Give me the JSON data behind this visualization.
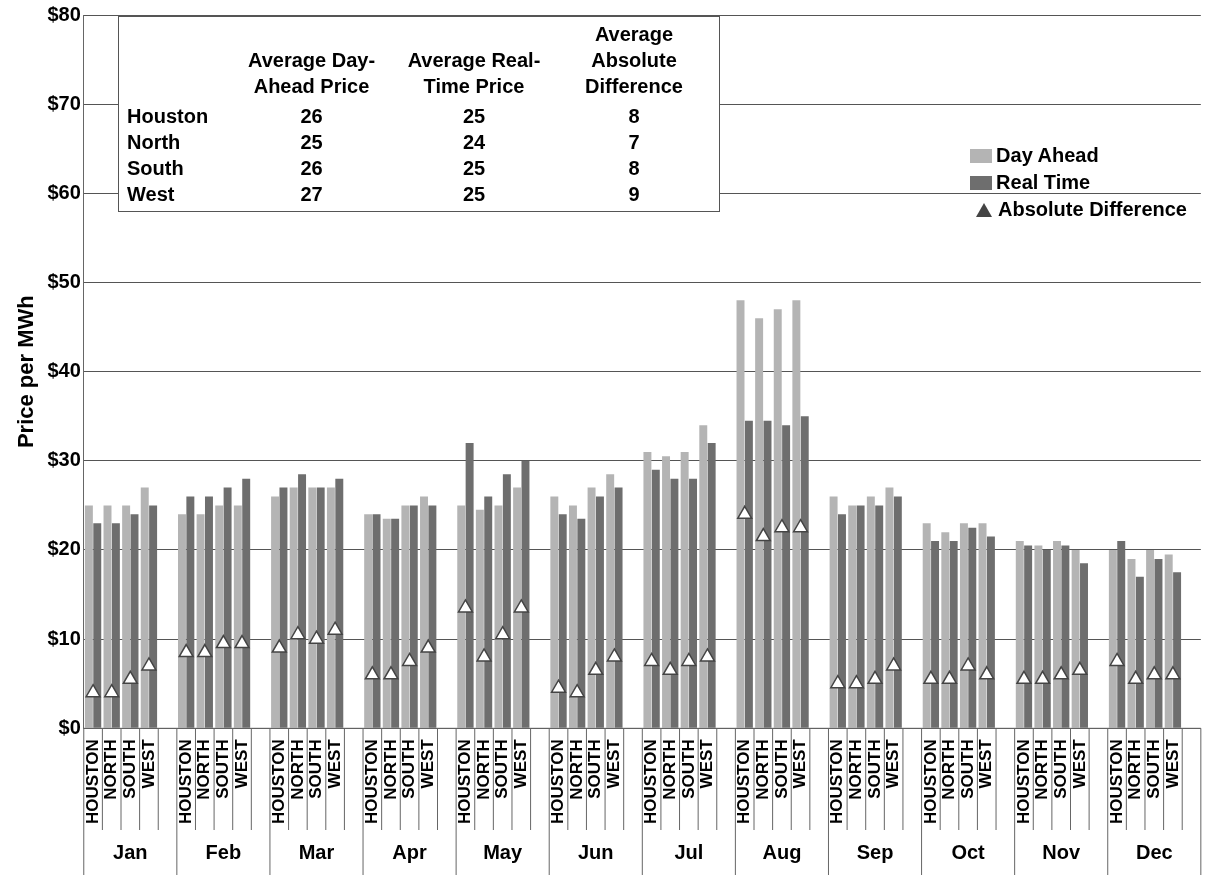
{
  "chart_data": [
    {
      "type": "bar",
      "ylabel": "Price per MWh",
      "categories": [
        "HOUSTON",
        "NORTH",
        "SOUTH",
        "WEST",
        null,
        "HOUSTON",
        "NORTH",
        "SOUTH",
        "WEST",
        null,
        "HOUSTON",
        "NORTH",
        "SOUTH",
        "WEST",
        null,
        "HOUSTON",
        "NORTH",
        "SOUTH",
        "WEST",
        null,
        "HOUSTON",
        "NORTH",
        "SOUTH",
        "WEST",
        null,
        "HOUSTON",
        "NORTH",
        "SOUTH",
        "WEST",
        null,
        "HOUSTON",
        "NORTH",
        "SOUTH",
        "WEST",
        null,
        "HOUSTON",
        "NORTH",
        "SOUTH",
        "WEST",
        null,
        "HOUSTON",
        "NORTH",
        "SOUTH",
        "WEST",
        null,
        "HOUSTON",
        "NORTH",
        "SOUTH",
        "WEST",
        null,
        "HOUSTON",
        "NORTH",
        "SOUTH",
        "WEST",
        null,
        "HOUSTON",
        "NORTH",
        "SOUTH",
        "WEST",
        null
      ],
      "series": [
        {
          "name": "Day Ahead",
          "type": "bar",
          "color": "#b4b4b4",
          "values": [
            25,
            25,
            25,
            27,
            null,
            24,
            24,
            25,
            25,
            null,
            26,
            27,
            27,
            27,
            null,
            24,
            23.5,
            25,
            26,
            null,
            25,
            24.5,
            25,
            27,
            null,
            26,
            25,
            27,
            28.5,
            null,
            31,
            30.5,
            31,
            34,
            null,
            48,
            46,
            47,
            48,
            null,
            26,
            25,
            26,
            27,
            null,
            23,
            22,
            23,
            23,
            null,
            21,
            20.5,
            21,
            20,
            null,
            20,
            19,
            20,
            19.5,
            null
          ]
        },
        {
          "name": "Real Time",
          "type": "bar",
          "color": "#6e6e6e",
          "values": [
            23,
            23,
            24,
            25,
            null,
            26,
            26,
            27,
            28,
            null,
            27,
            28.5,
            27,
            28,
            null,
            24,
            23.5,
            25,
            25,
            null,
            32,
            26,
            28.5,
            30,
            null,
            24,
            23.5,
            26,
            27,
            null,
            29,
            28,
            28,
            32,
            null,
            34.5,
            34.5,
            34,
            35,
            null,
            24,
            25,
            25,
            26,
            null,
            21,
            21,
            22.5,
            21.5,
            null,
            20.5,
            20,
            20.5,
            18.5,
            null,
            21,
            17,
            19,
            17.5,
            null
          ]
        },
        {
          "name": "Absolute Difference",
          "type": "scatter",
          "color": "#ffffff",
          "values": [
            4,
            4,
            5.5,
            7,
            null,
            8.5,
            8.5,
            9.5,
            9.5,
            null,
            9,
            10.5,
            10,
            11,
            null,
            6,
            6,
            7.5,
            9,
            null,
            13.5,
            8,
            10.5,
            13.5,
            null,
            4.5,
            4,
            6.5,
            8,
            null,
            7.5,
            6.5,
            7.5,
            8,
            null,
            24,
            21.5,
            22.5,
            22.5,
            null,
            5,
            5,
            5.5,
            7,
            null,
            5.5,
            5.5,
            7,
            6,
            null,
            5.5,
            5.5,
            6,
            6.5,
            null,
            7.5,
            5.5,
            6,
            6,
            null
          ]
        }
      ],
      "ylim": [
        0,
        80
      ],
      "yticks": [
        {
          "value": 0,
          "label": "$0"
        },
        {
          "value": 10,
          "label": "$10"
        },
        {
          "value": 20,
          "label": "$20"
        },
        {
          "value": 30,
          "label": "$30"
        },
        {
          "value": 40,
          "label": "$40"
        },
        {
          "value": 50,
          "label": "$50"
        },
        {
          "value": 60,
          "label": "$60"
        },
        {
          "value": 70,
          "label": "$70"
        },
        {
          "value": 80,
          "label": "$80"
        }
      ],
      "grid": "y",
      "legend": "top right",
      "marker": "triangle",
      "annotations": [
        "Jan",
        "Feb",
        "Mar",
        "Apr",
        "May",
        "Jun",
        "Jul",
        "Aug",
        "Sep",
        "Oct",
        "Nov",
        "Dec"
      ]
    },
    {
      "type": "other",
      "annotations": [
        "Average Day-Ahead Price",
        "Average Real-Time Price",
        "Average Absolute Difference",
        "Houston",
        "26",
        "25",
        "8",
        "North",
        "25",
        "24",
        "7",
        "South",
        "26",
        "25",
        "8",
        "West",
        "27",
        "25",
        "9"
      ]
    }
  ]
}
